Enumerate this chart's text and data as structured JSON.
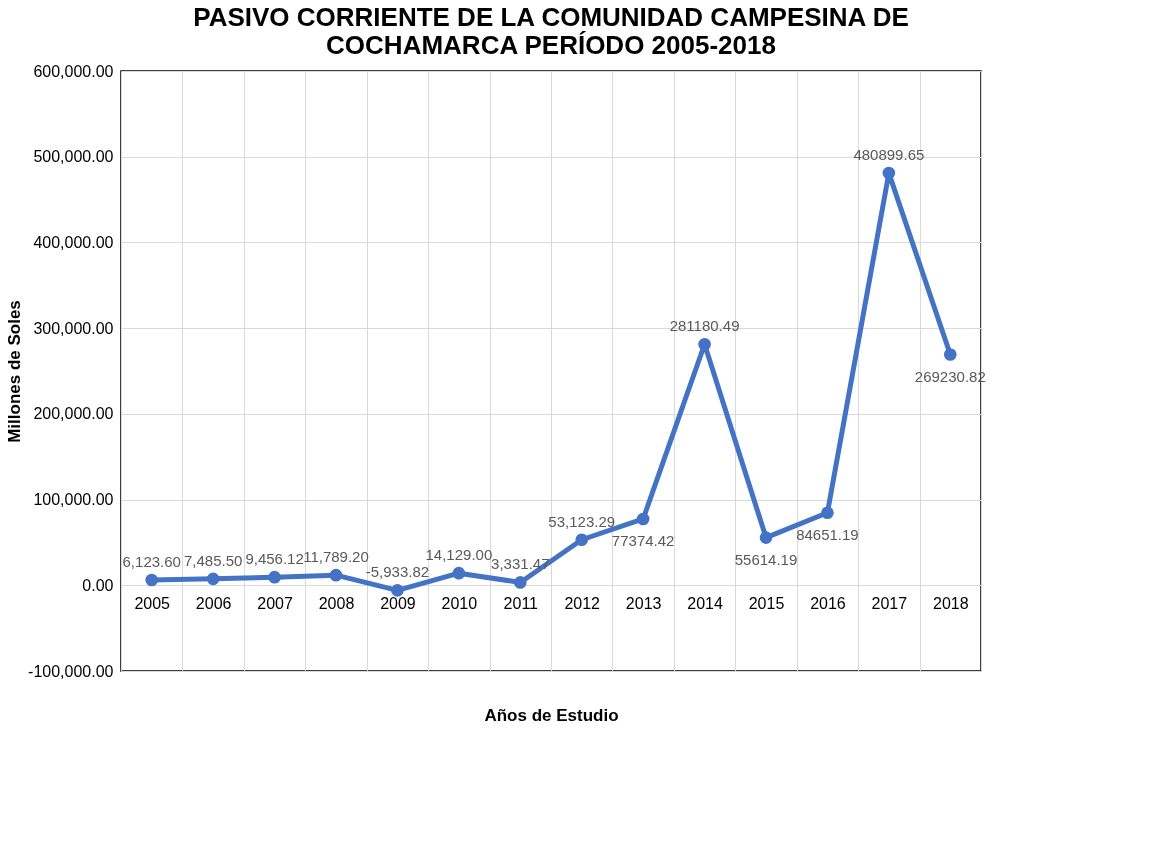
{
  "chart_data": {
    "type": "line",
    "title": "PASIVO CORRIENTE DE LA COMUNIDAD CAMPESINA DE COCHAMARCA PERÍODO 2005-2018",
    "xlabel": "Años de Estudio",
    "ylabel": "Millones de Soles",
    "categories": [
      "2005",
      "2006",
      "2007",
      "2008",
      "2009",
      "2010",
      "2011",
      "2012",
      "2013",
      "2014",
      "2015",
      "2016",
      "2017",
      "2018"
    ],
    "series": [
      {
        "color": "#4472c4",
        "values": [
          6123.6,
          7485.5,
          9456.12,
          11789.2,
          -5933.82,
          14129.0,
          3331.47,
          53123.29,
          77374.42,
          281180.49,
          55614.19,
          84651.19,
          480899.65,
          269230.82
        ],
        "value_labels": [
          "6,123.60",
          "7,485.50",
          "9,456.12",
          "11,789.20",
          "-5,933.82",
          "14,129.00",
          "3,331.47",
          "53,123.29",
          "77374.42",
          "281180.49",
          "55614.19",
          "84651.19",
          "480899.65",
          "269230.82"
        ]
      }
    ],
    "ylim": [
      -100000,
      600000
    ],
    "yticks": [
      {
        "value": -100000,
        "label": "-100,000.00"
      },
      {
        "value": 0,
        "label": "0.00"
      },
      {
        "value": 100000,
        "label": "100,000.00"
      },
      {
        "value": 200000,
        "label": "200,000.00"
      },
      {
        "value": 300000,
        "label": "300,000.00"
      },
      {
        "value": 400000,
        "label": "400,000.00"
      },
      {
        "value": 500000,
        "label": "500,000.00"
      },
      {
        "value": 600000,
        "label": "600,000.00"
      }
    ],
    "grid": true,
    "marker": "circle",
    "line_style": "solid"
  }
}
